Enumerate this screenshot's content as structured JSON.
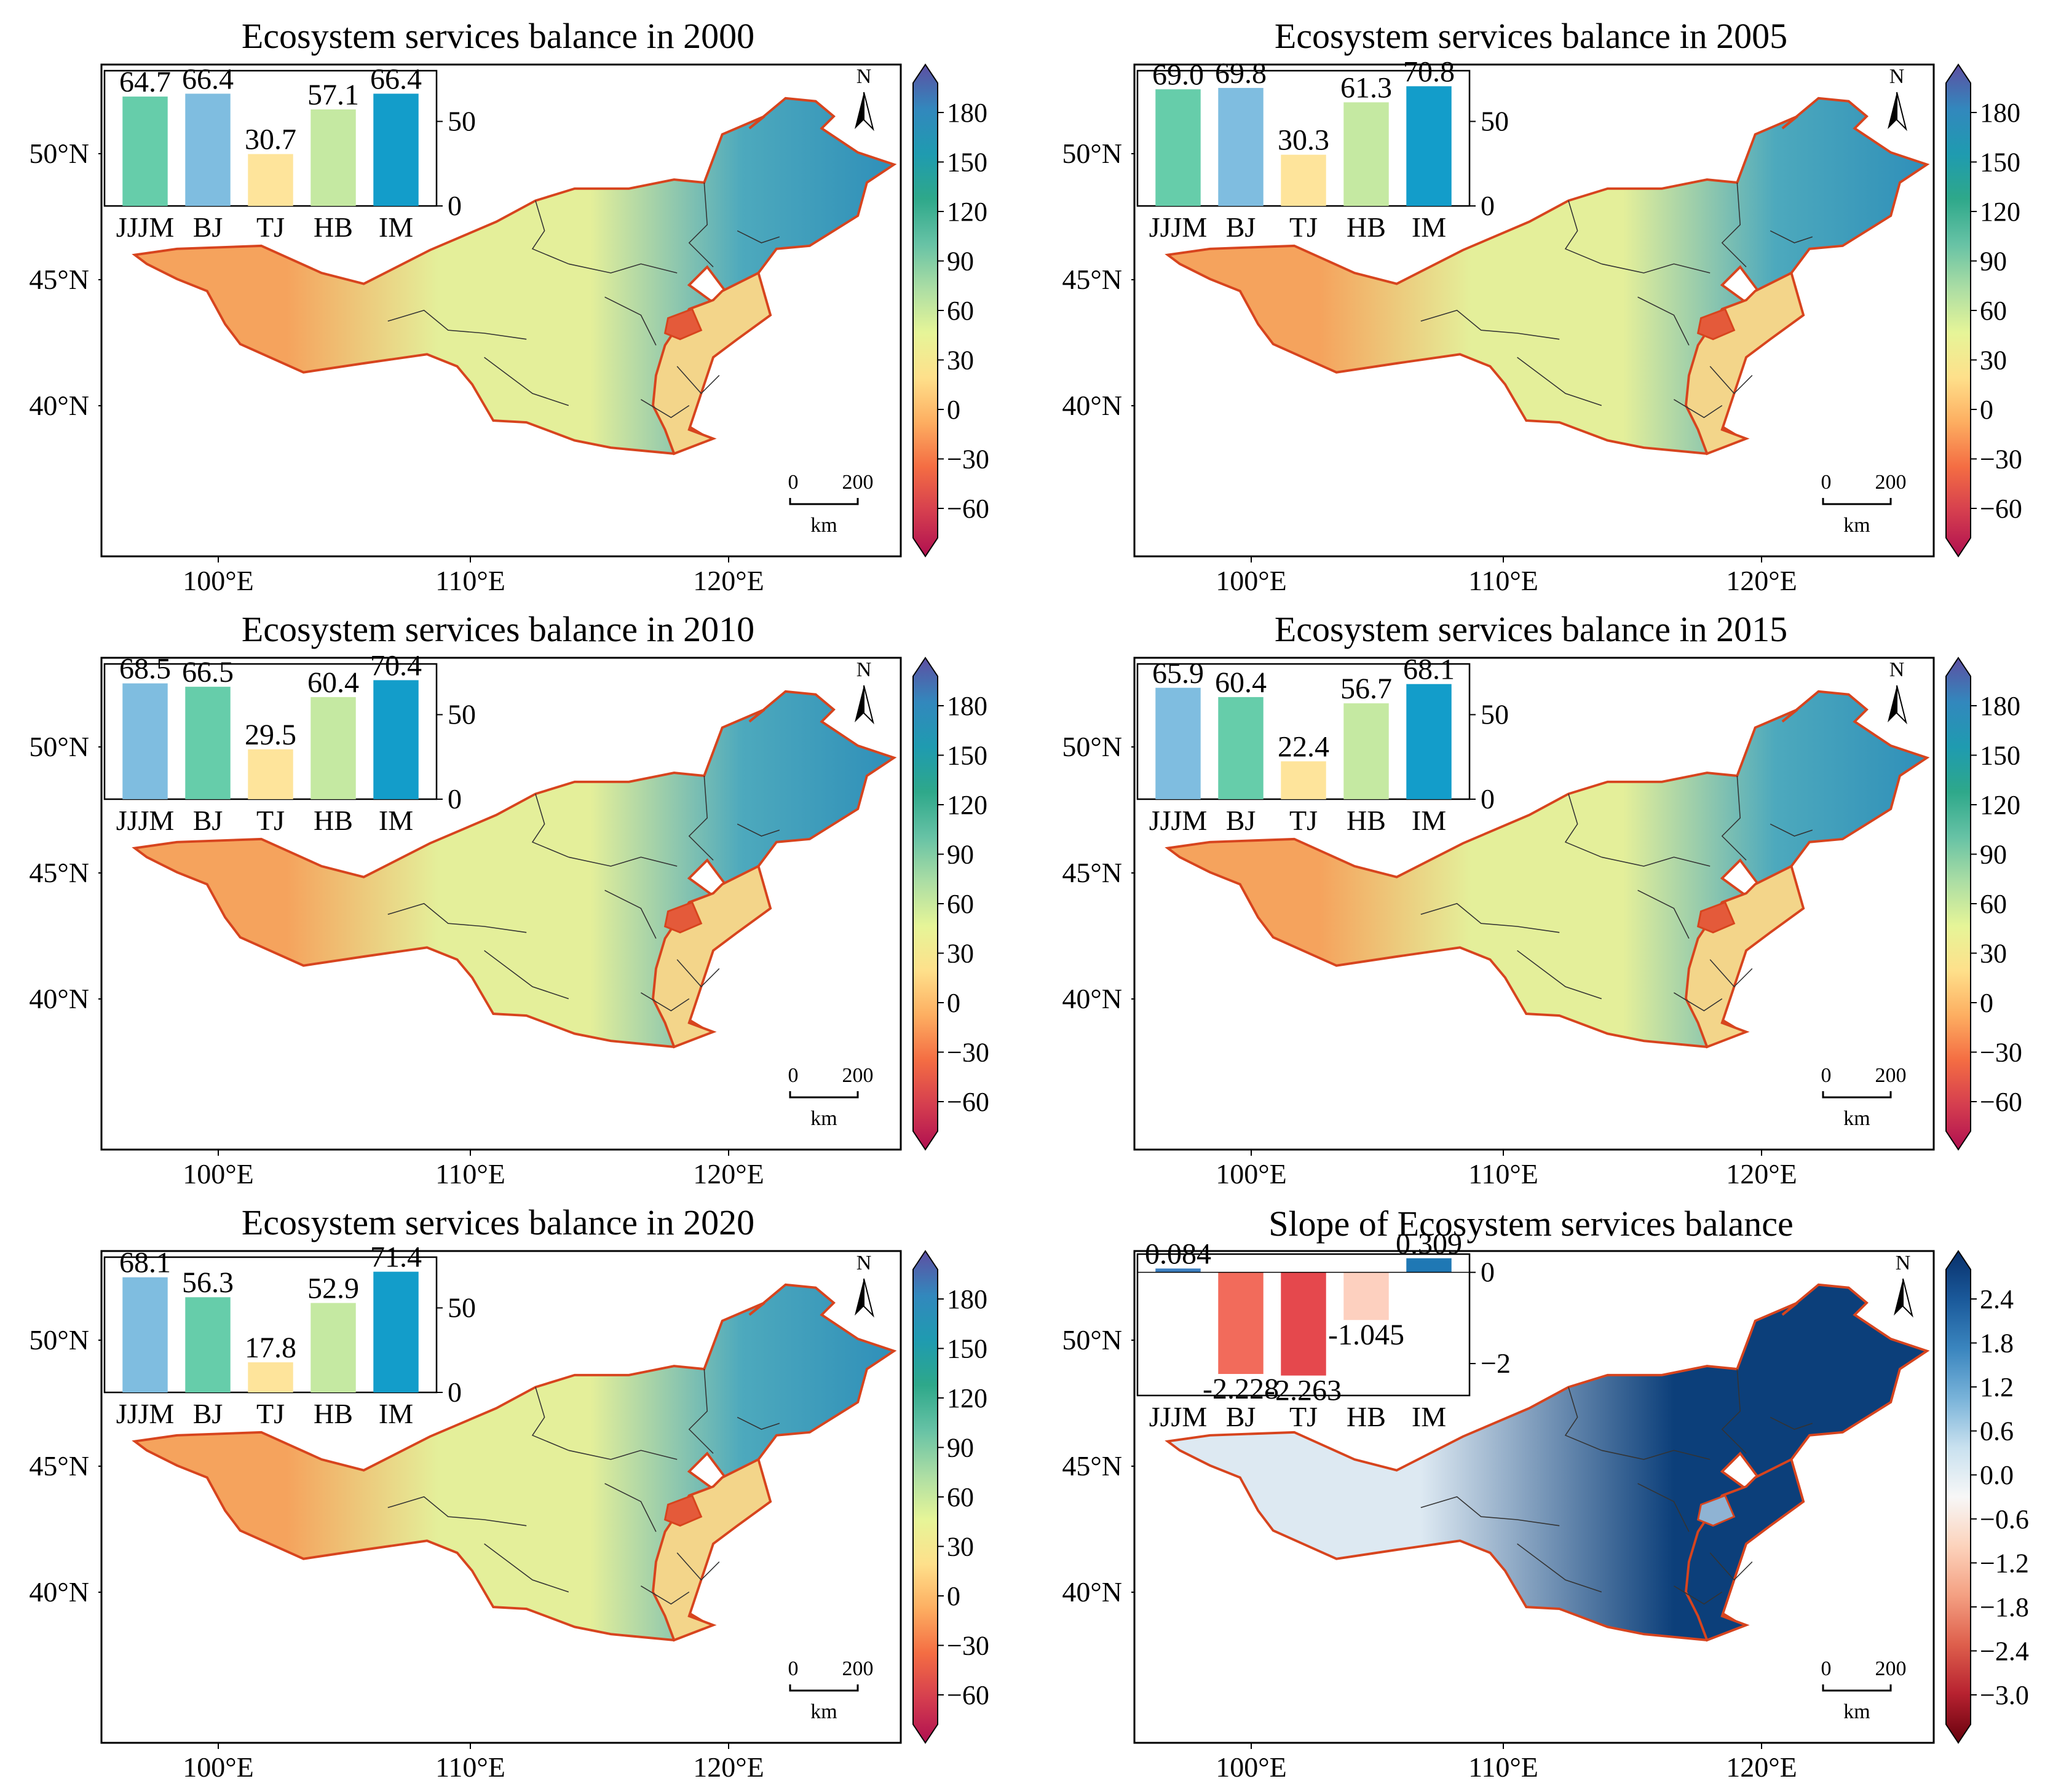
{
  "panels": [
    {
      "title": "Ecosystem services balance in 2000",
      "inset": {
        "categories": [
          "JJJM",
          "BJ",
          "TJ",
          "HB",
          "IM"
        ],
        "values": [
          64.7,
          66.4,
          30.7,
          57.1,
          66.4
        ],
        "labels": [
          "64.7",
          "66.4",
          "30.7",
          "57.1",
          "66.4"
        ],
        "colors": [
          "#66cdaa",
          "#7fbde0",
          "#fee49b",
          "#c5e9a2",
          "#139dca"
        ],
        "yticks": [
          "50",
          "0"
        ]
      }
    },
    {
      "title": "Ecosystem services balance in 2005",
      "inset": {
        "categories": [
          "JJJM",
          "BJ",
          "TJ",
          "HB",
          "IM"
        ],
        "values": [
          69.0,
          69.8,
          30.3,
          61.3,
          70.8
        ],
        "labels": [
          "69.0",
          "69.8",
          "30.3",
          "61.3",
          "70.8"
        ],
        "colors": [
          "#66cdaa",
          "#7fbde0",
          "#fee49b",
          "#c5e9a2",
          "#139dca"
        ],
        "yticks": [
          "50",
          "0"
        ]
      }
    },
    {
      "title": "Ecosystem services balance in 2010",
      "inset": {
        "categories": [
          "JJJM",
          "BJ",
          "TJ",
          "HB",
          "IM"
        ],
        "values": [
          68.5,
          66.5,
          29.5,
          60.4,
          70.4
        ],
        "labels": [
          "68.5",
          "66.5",
          "29.5",
          "60.4",
          "70.4"
        ],
        "colors": [
          "#7fbde0",
          "#66cdaa",
          "#fee49b",
          "#c5e9a2",
          "#139dca"
        ],
        "yticks": [
          "50",
          "0"
        ]
      }
    },
    {
      "title": "Ecosystem services balance in 2015",
      "inset": {
        "categories": [
          "JJJM",
          "BJ",
          "TJ",
          "HB",
          "IM"
        ],
        "values": [
          65.9,
          60.4,
          22.4,
          56.7,
          68.1
        ],
        "labels": [
          "65.9",
          "60.4",
          "22.4",
          "56.7",
          "68.1"
        ],
        "colors": [
          "#7fbde0",
          "#66cdaa",
          "#fee49b",
          "#c5e9a2",
          "#139dca"
        ],
        "yticks": [
          "50",
          "0"
        ]
      }
    },
    {
      "title": "Ecosystem services balance in 2020",
      "inset": {
        "categories": [
          "JJJM",
          "BJ",
          "TJ",
          "HB",
          "IM"
        ],
        "values": [
          68.1,
          56.3,
          17.8,
          52.9,
          71.4
        ],
        "labels": [
          "68.1",
          "56.3",
          "17.8",
          "52.9",
          "71.4"
        ],
        "colors": [
          "#7fbde0",
          "#66cdaa",
          "#fee49b",
          "#c5e9a2",
          "#139dca"
        ],
        "yticks": [
          "50",
          "0"
        ]
      }
    },
    {
      "title": "Slope of Ecosystem services balance",
      "inset": {
        "categories": [
          "JJJM",
          "BJ",
          "TJ",
          "HB",
          "IM"
        ],
        "values": [
          0.084,
          -2.228,
          -2.263,
          -1.045,
          0.309
        ],
        "labels": [
          "0.084",
          "-2.228",
          "-2.263",
          "-1.045",
          "0.309"
        ],
        "colors": [
          "#3b7fc0",
          "#f26b5b",
          "#e5484d",
          "#fdd0bf",
          "#1f78b4"
        ],
        "yticks": [
          "0",
          "−2"
        ]
      }
    }
  ],
  "axis": {
    "lat_labels": [
      "50°N",
      "45°N",
      "40°N"
    ],
    "lon_labels": [
      "100°E",
      "110°E",
      "120°E"
    ]
  },
  "colorbar_esb": {
    "ticks": [
      "180",
      "150",
      "120",
      "90",
      "60",
      "30",
      "0",
      "−30",
      "−60"
    ],
    "colors": [
      "#5e4fa2",
      "#3288bd",
      "#1f9bb0",
      "#2ea88a",
      "#66c2a5",
      "#abdda4",
      "#e6f598",
      "#fee08b",
      "#fdae61",
      "#f46d43",
      "#d53e4f",
      "#b01050"
    ]
  },
  "colorbar_slope": {
    "ticks": [
      "2.4",
      "1.8",
      "1.2",
      "0.6",
      "0.0",
      "−0.6",
      "−1.2",
      "−1.8",
      "−2.4",
      "−3.0"
    ],
    "colors": [
      "#08306b",
      "#1b5a9b",
      "#3b86bf",
      "#79b3d9",
      "#c9e1ef",
      "#f7f7f7",
      "#fcd3bc",
      "#f4a082",
      "#de5f4c",
      "#b72230",
      "#67000d"
    ]
  },
  "north_label": "N",
  "scalebar": {
    "zero": "0",
    "dist": "200",
    "unit": "km"
  },
  "map_colors": {
    "west": "#f5a35d",
    "central": "#e4ef9a",
    "east": "#4da9bd",
    "ne": "#2f8fb9",
    "south": "#f3d58a",
    "border": "#d7441e",
    "slope_dark": "#0c3f7a",
    "slope_light": "#dde9f2"
  }
}
